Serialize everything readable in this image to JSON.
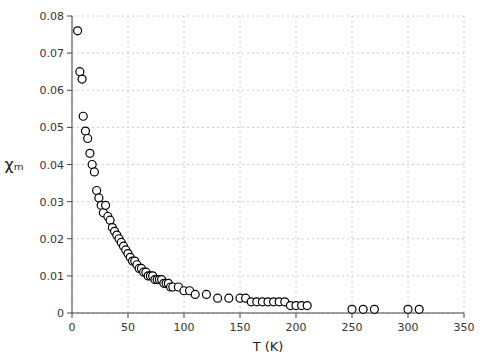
{
  "chart_data": {
    "type": "scatter",
    "xlabel": "T (K)",
    "ylabel": "χₘ",
    "x": [
      5,
      7,
      9,
      10,
      12,
      14,
      16,
      18,
      20,
      22,
      24,
      26,
      28,
      30,
      32,
      34,
      36,
      38,
      40,
      42,
      44,
      46,
      48,
      50,
      52,
      54,
      56,
      58,
      60,
      62,
      64,
      66,
      68,
      70,
      72,
      74,
      76,
      78,
      80,
      82,
      84,
      86,
      88,
      90,
      95,
      100,
      105,
      110,
      120,
      130,
      140,
      150,
      155,
      160,
      165,
      170,
      175,
      180,
      185,
      190,
      195,
      200,
      205,
      210,
      250,
      260,
      270,
      300,
      310
    ],
    "values": [
      0.076,
      0.065,
      0.063,
      0.053,
      0.049,
      0.047,
      0.043,
      0.04,
      0.038,
      0.033,
      0.031,
      0.029,
      0.027,
      0.029,
      0.026,
      0.025,
      0.023,
      0.022,
      0.021,
      0.02,
      0.019,
      0.018,
      0.017,
      0.016,
      0.015,
      0.014,
      0.014,
      0.013,
      0.012,
      0.012,
      0.011,
      0.011,
      0.01,
      0.01,
      0.01,
      0.009,
      0.009,
      0.009,
      0.009,
      0.008,
      0.008,
      0.008,
      0.007,
      0.007,
      0.007,
      0.006,
      0.006,
      0.005,
      0.005,
      0.004,
      0.004,
      0.004,
      0.004,
      0.003,
      0.003,
      0.003,
      0.003,
      0.003,
      0.003,
      0.003,
      0.002,
      0.002,
      0.002,
      0.002,
      0.001,
      0.001,
      0.001,
      0.001,
      0.001
    ],
    "xlim": [
      0,
      350
    ],
    "ylim": [
      0,
      0.08
    ],
    "xticks": [
      0,
      50,
      100,
      150,
      200,
      250,
      300,
      350
    ],
    "yticks": [
      0,
      0.01,
      0.02,
      0.03,
      0.04,
      0.05,
      0.06,
      0.07,
      0.08
    ],
    "grid": true,
    "color": "#000000",
    "marker": "circle"
  }
}
